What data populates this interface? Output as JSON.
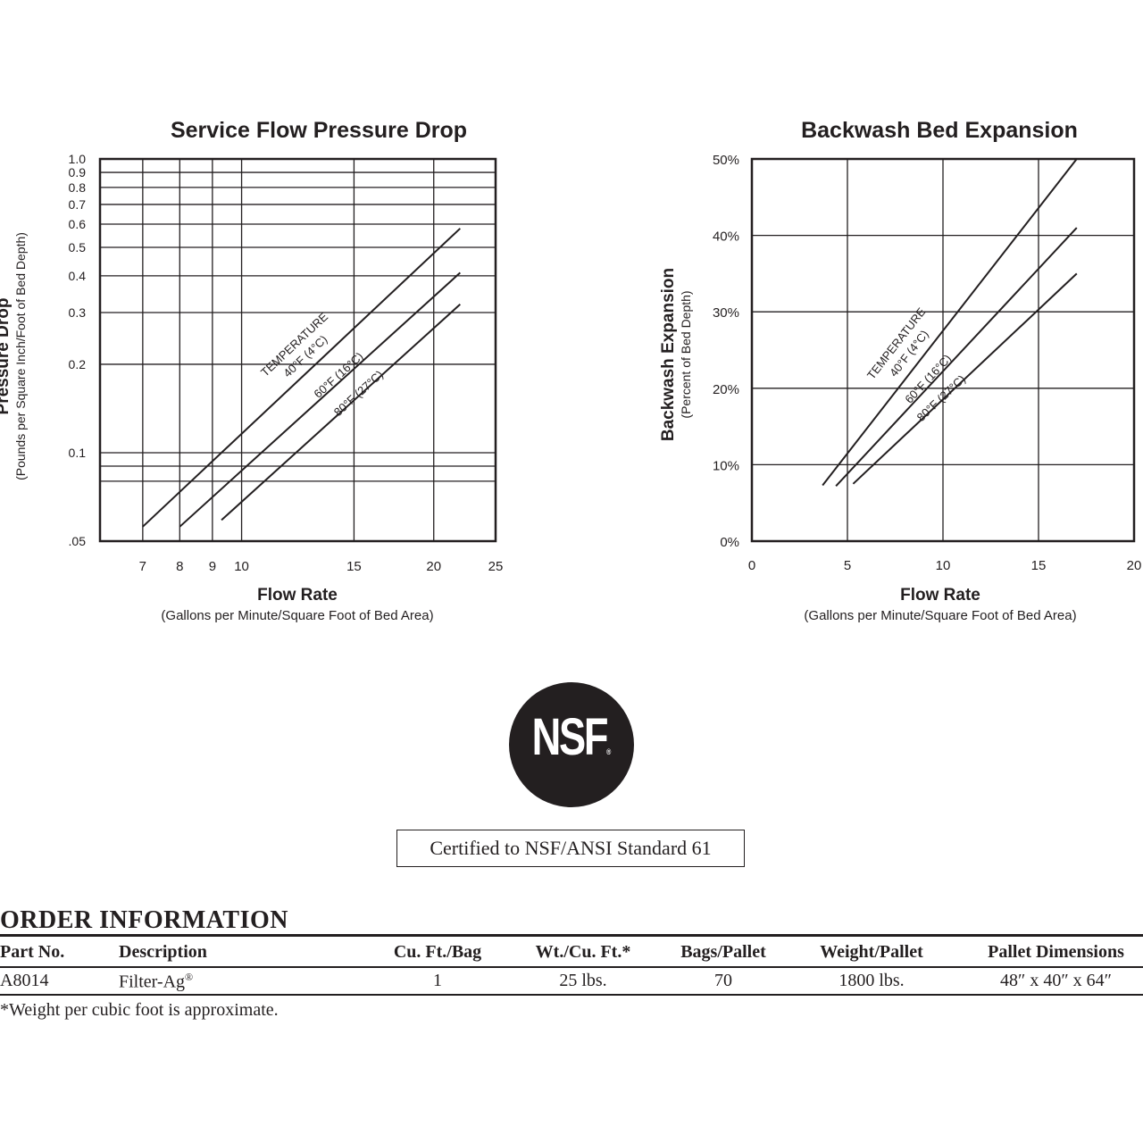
{
  "chart_data": [
    {
      "type": "line",
      "title": "Service Flow Pressure Drop",
      "xlabel": "Flow Rate",
      "xlabel_sub": "(Gallons per Minute/Square Foot of Bed Area)",
      "ylabel": "Pressure Drop",
      "ylabel_sub": "(Pounds per Square Inch/Foot of Bed Depth)",
      "x_scale": "log",
      "y_scale": "log",
      "xlim": [
        6,
        25
      ],
      "ylim": [
        0.05,
        1.0
      ],
      "x_ticks": [
        "7",
        "8",
        "9",
        "10",
        "15",
        "20",
        "25"
      ],
      "y_ticks": [
        "1.0",
        "0.9",
        "0.8",
        "0.7",
        "0.6",
        "0.5",
        "0.4",
        "0.3",
        "0.2",
        "0.1",
        ".05"
      ],
      "annotation": "TEMPERATURE",
      "grid": true,
      "series": [
        {
          "name": "40°F (4°C)",
          "x": [
            7,
            22
          ],
          "y": [
            0.056,
            0.58
          ]
        },
        {
          "name": "60°F (16°C)",
          "x": [
            8,
            22
          ],
          "y": [
            0.056,
            0.41
          ]
        },
        {
          "name": "80°F (27°C)",
          "x": [
            9.3,
            22
          ],
          "y": [
            0.059,
            0.32
          ]
        }
      ]
    },
    {
      "type": "line",
      "title": "Backwash Bed Expansion",
      "xlabel": "Flow Rate",
      "xlabel_sub": "(Gallons per Minute/Square Foot of Bed Area)",
      "ylabel": "Backwash Expansion",
      "ylabel_sub": "(Percent of Bed Depth)",
      "xlim": [
        0,
        20
      ],
      "ylim": [
        0,
        50
      ],
      "x_ticks": [
        "0",
        "5",
        "10",
        "15",
        "20"
      ],
      "y_ticks": [
        "50%",
        "40%",
        "30%",
        "20%",
        "10%",
        "0%"
      ],
      "annotation": "TEMPERATURE",
      "grid": true,
      "series": [
        {
          "name": "40°F (4°C)",
          "x": [
            3.7,
            17
          ],
          "y": [
            7.3,
            50
          ]
        },
        {
          "name": "60°F (16°C)",
          "x": [
            4.4,
            17
          ],
          "y": [
            7.2,
            41
          ]
        },
        {
          "name": "80°F (27°C)",
          "x": [
            5.3,
            17
          ],
          "y": [
            7.5,
            35
          ]
        }
      ]
    }
  ],
  "logo": {
    "text": "NSF",
    "mark": "®"
  },
  "certification": "Certified to NSF/ANSI Standard 61",
  "order": {
    "heading": "ORDER INFORMATION",
    "columns": [
      "Part No.",
      "Description",
      "Cu. Ft./Bag",
      "Wt./Cu. Ft.*",
      "Bags/Pallet",
      "Weight/Pallet",
      "Pallet Dimensions"
    ],
    "rows": [
      {
        "part": "A8014",
        "description": "Filter-Ag",
        "description_mark": "®",
        "cu_ft": "1",
        "wt_cu_ft": "25 lbs.",
        "bags_pallet": "70",
        "weight_pallet": "1800 lbs.",
        "dimensions": "48″ x 40″ x 64″"
      }
    ],
    "footnote": "*Weight per cubic foot is approximate."
  }
}
